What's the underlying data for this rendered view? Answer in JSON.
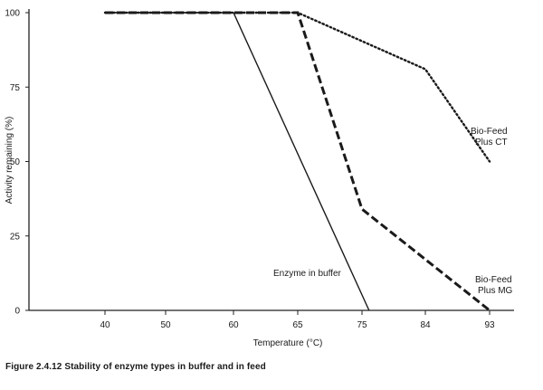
{
  "chart_data": {
    "type": "line",
    "title": "",
    "xlabel": "Temperature (°C)",
    "ylabel": "Activity remaining (%)",
    "x_ticks": [
      "40",
      "50",
      "60",
      "65",
      "75",
      "84",
      "93"
    ],
    "y_ticks": [
      "0",
      "25",
      "50",
      "75",
      "100"
    ],
    "ylim": [
      0,
      100
    ],
    "series": [
      {
        "name": "Enzyme in buffer",
        "style": "solid",
        "points": [
          [
            40,
            100
          ],
          [
            60,
            100
          ],
          [
            76,
            0
          ]
        ]
      },
      {
        "name": "Bio-Feed Plus MG",
        "style": "dashed",
        "points": [
          [
            40,
            100
          ],
          [
            65,
            100
          ],
          [
            75,
            34
          ],
          [
            93,
            0
          ]
        ]
      },
      {
        "name": "Bio-Feed Plus CT",
        "style": "dotted",
        "points": [
          [
            40,
            100
          ],
          [
            65,
            100
          ],
          [
            84,
            81
          ],
          [
            93,
            50
          ]
        ]
      }
    ],
    "labels": {
      "enzyme_in_buffer": "Enzyme in buffer",
      "bio_feed_mg_line1": "Bio-Feed",
      "bio_feed_mg_line2": "Plus MG",
      "bio_feed_ct_line1": "Bio-Feed",
      "bio_feed_ct_line2": "Plus CT"
    }
  },
  "caption": "Figure 2.4.12 Stability of enzyme types in buffer and in feed"
}
